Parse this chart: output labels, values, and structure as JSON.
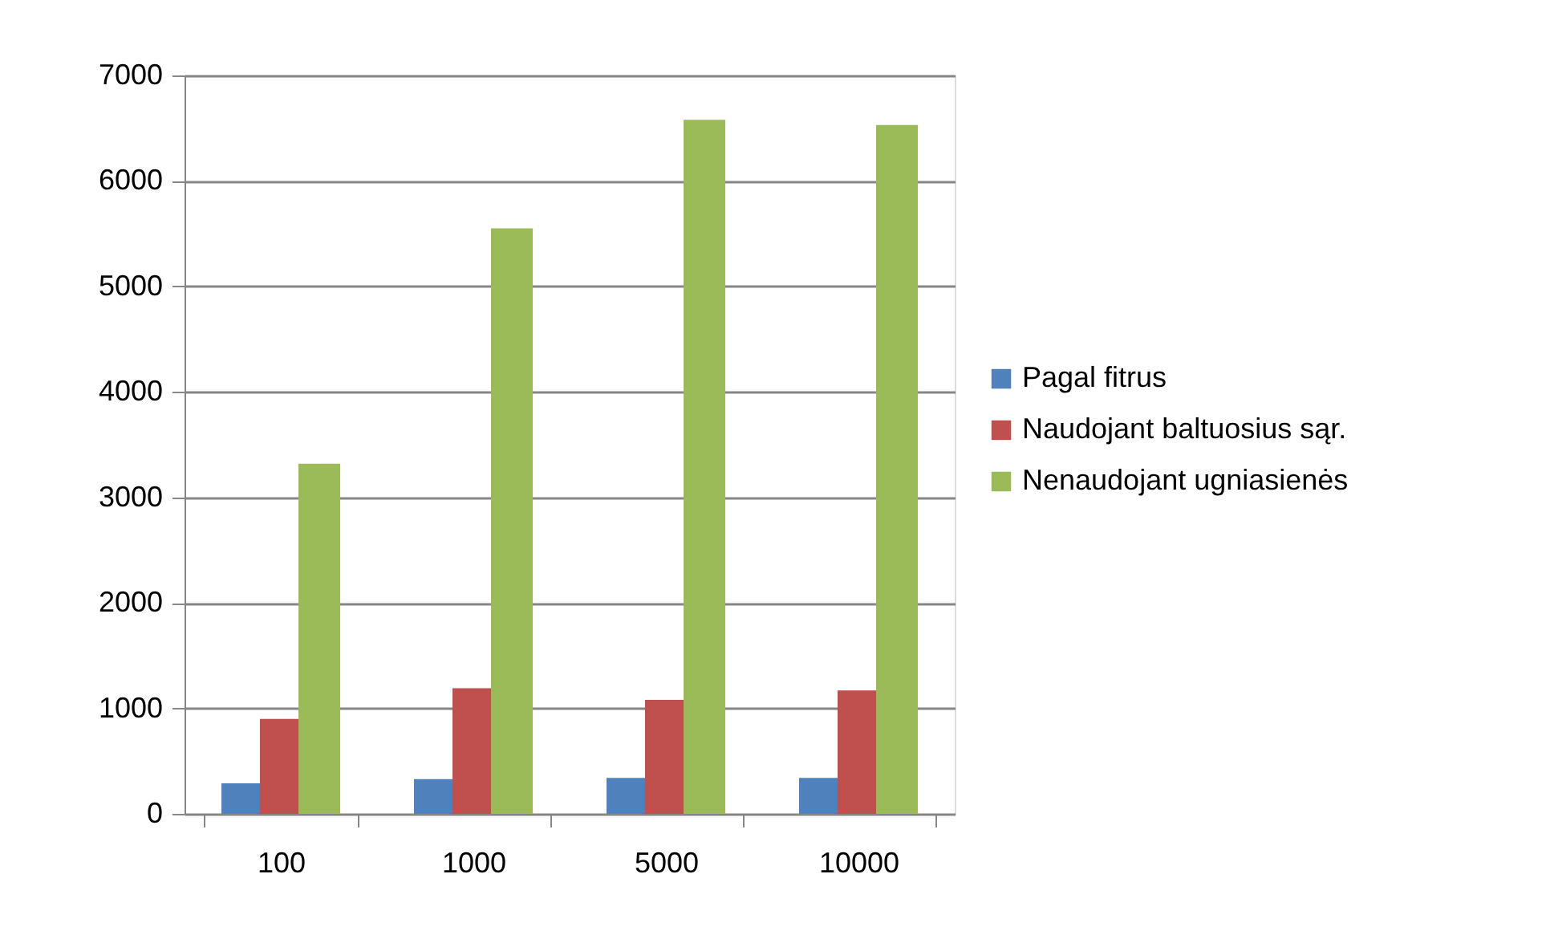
{
  "chart_data": {
    "type": "bar",
    "categories": [
      "100",
      "1000",
      "5000",
      "10000"
    ],
    "series": [
      {
        "name": "Pagal fitrus",
        "color": "#4f81bd",
        "values": [
          290,
          330,
          340,
          340
        ]
      },
      {
        "name": "Naudojant baltuosius sąr.",
        "color": "#c0504d",
        "values": [
          900,
          1190,
          1080,
          1170
        ]
      },
      {
        "name": "Nenaudojant ugniasienės",
        "color": "#9bbb59",
        "values": [
          3320,
          5550,
          6580,
          6530
        ]
      }
    ],
    "ylim": [
      0,
      7000
    ],
    "yticks": [
      0,
      1000,
      2000,
      3000,
      4000,
      5000,
      6000,
      7000
    ],
    "grid": "y",
    "legend": "right"
  }
}
